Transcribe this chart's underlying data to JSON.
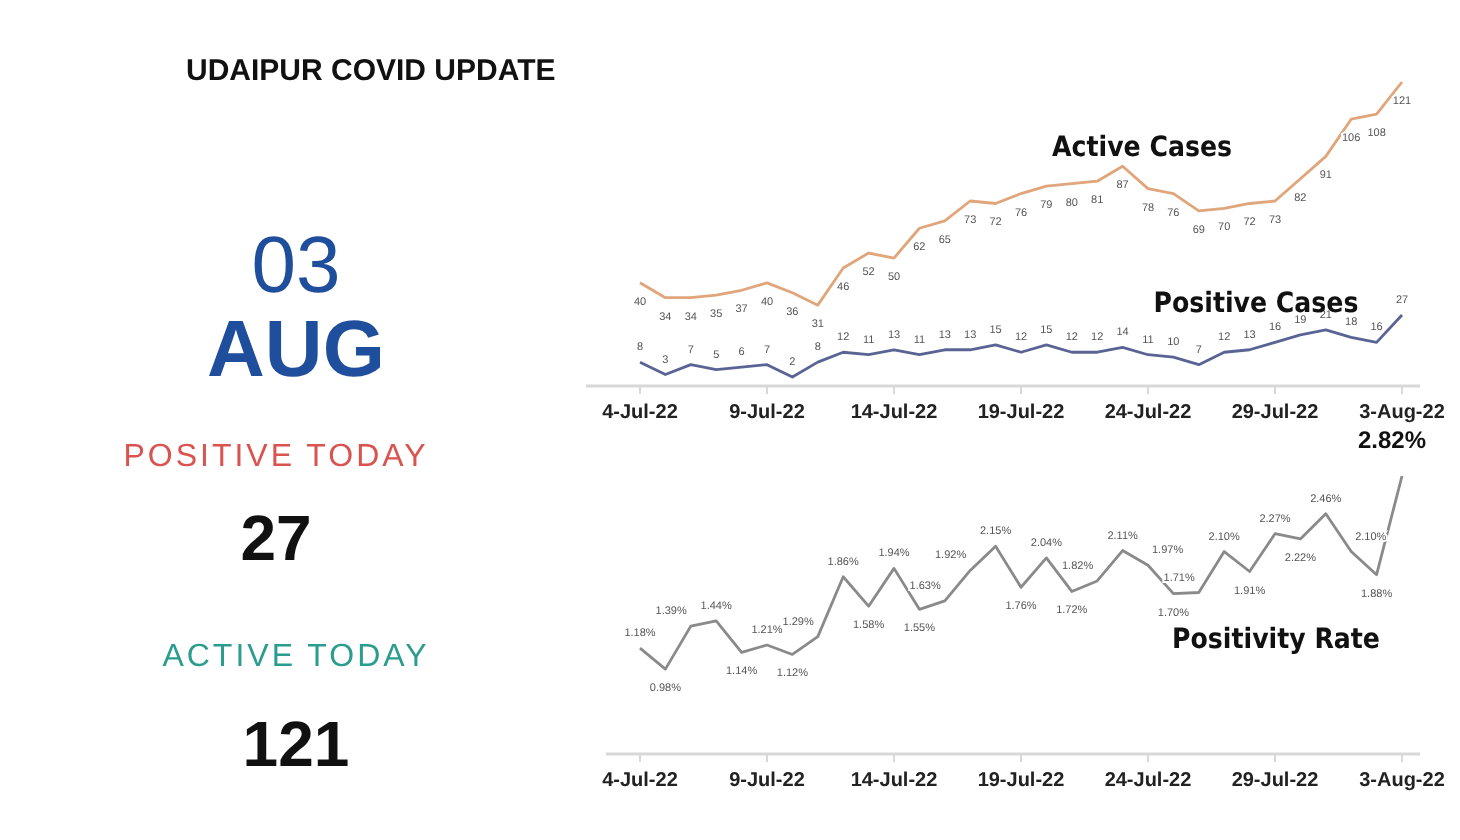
{
  "chart_data": [
    {
      "type": "other",
      "title": "UDAIPUR COVID UPDATE",
      "annotations": [
        "03",
        "AUG",
        "POSITIVE TODAY",
        "27",
        "ACTIVE TODAY",
        "121"
      ]
    },
    {
      "type": "line",
      "categories": [
        "4-Jul-22",
        null,
        null,
        null,
        null,
        "9-Jul-22",
        null,
        null,
        null,
        null,
        "14-Jul-22",
        null,
        null,
        null,
        null,
        "19-Jul-22",
        null,
        null,
        null,
        null,
        "24-Jul-22",
        null,
        null,
        null,
        null,
        "29-Jul-22",
        null,
        null,
        null,
        null,
        "3-Aug-22"
      ],
      "data_labels": true,
      "series": [
        {
          "name": "Active Cases",
          "color": "#e0a57a",
          "values": [
            40,
            34,
            34,
            35,
            37,
            40,
            36,
            31,
            46,
            52,
            50,
            62,
            65,
            73,
            72,
            76,
            79,
            80,
            81,
            87,
            78,
            76,
            69,
            70,
            72,
            73,
            82,
            91,
            106,
            108,
            121
          ]
        },
        {
          "name": "Positive Cases",
          "color": "#5a6494",
          "values": [
            8,
            3,
            7,
            5,
            6,
            7,
            2,
            8,
            12,
            11,
            13,
            11,
            13,
            13,
            15,
            12,
            15,
            12,
            12,
            14,
            11,
            10,
            7,
            12,
            13,
            16,
            19,
            21,
            18,
            16,
            27
          ]
        }
      ]
    },
    {
      "type": "line",
      "categories": [
        "4-Jul-22",
        null,
        null,
        null,
        null,
        "9-Jul-22",
        null,
        null,
        null,
        null,
        "14-Jul-22",
        null,
        null,
        null,
        null,
        "19-Jul-22",
        null,
        null,
        null,
        null,
        "24-Jul-22",
        null,
        null,
        null,
        null,
        "29-Jul-22",
        null,
        null,
        null,
        null,
        "3-Aug-22"
      ],
      "series": [
        {
          "name": "Positivity Rate",
          "color": "#8a8a8a",
          "values": [
            1.18,
            0.98,
            1.39,
            1.44,
            1.14,
            1.21,
            1.12,
            1.29,
            1.86,
            1.58,
            1.94,
            1.55,
            1.63,
            1.92,
            2.15,
            1.76,
            2.04,
            1.72,
            1.82,
            2.11,
            1.97,
            1.7,
            1.71,
            2.1,
            1.91,
            2.27,
            2.22,
            2.46,
            2.1,
            1.88,
            2.82
          ],
          "value_labels": [
            "1.18%",
            "0.98%",
            "1.39%",
            "1.44%",
            "1.14%",
            "1.21%",
            "1.12%",
            "1.29%",
            "1.86%",
            "1.58%",
            "1.94%",
            "1.55%",
            "1.63%",
            "1.92%",
            "2.15%",
            "1.76%",
            "2.04%",
            "1.72%",
            "1.82%",
            "2.11%",
            "1.97%",
            "1.70%",
            "1.71%",
            "2.10%",
            "1.91%",
            "2.27%",
            "2.22%",
            "2.46%",
            "2.10%",
            "1.88%",
            "2.82%"
          ]
        }
      ]
    }
  ]
}
